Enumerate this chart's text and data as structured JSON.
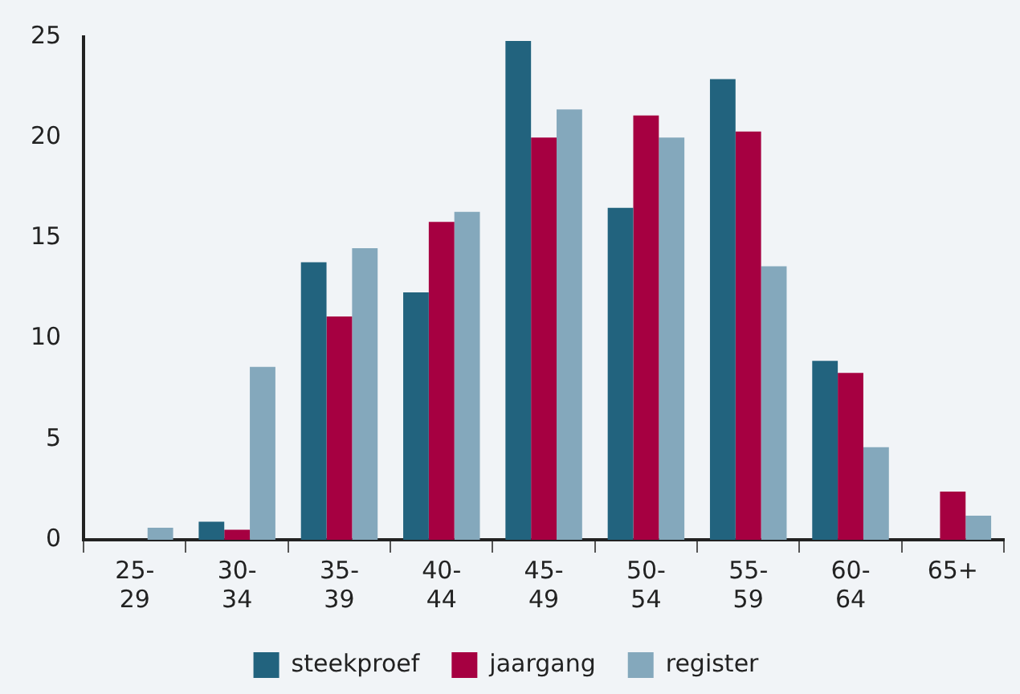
{
  "chart_data": {
    "type": "bar",
    "categories": [
      "25-29",
      "30-34",
      "35-39",
      "40-44",
      "45-49",
      "50-54",
      "55-59",
      "60-64",
      "65+"
    ],
    "series": [
      {
        "name": "steekproef",
        "color": "#22637e",
        "values": [
          0,
          0.9,
          13.8,
          12.3,
          24.8,
          16.5,
          22.9,
          8.9,
          0
        ]
      },
      {
        "name": "jaargang",
        "color": "#a60041",
        "values": [
          0,
          0.5,
          11.1,
          15.8,
          20.0,
          21.1,
          20.3,
          8.3,
          2.4
        ]
      },
      {
        "name": "register",
        "color": "#84a8bc",
        "values": [
          0.6,
          8.6,
          14.5,
          16.3,
          21.4,
          20.0,
          13.6,
          4.6,
          1.2
        ]
      }
    ],
    "ylim": [
      0,
      25
    ],
    "yticks": [
      0,
      5,
      10,
      15,
      20,
      25
    ],
    "grid": false,
    "legend": "bottom"
  }
}
